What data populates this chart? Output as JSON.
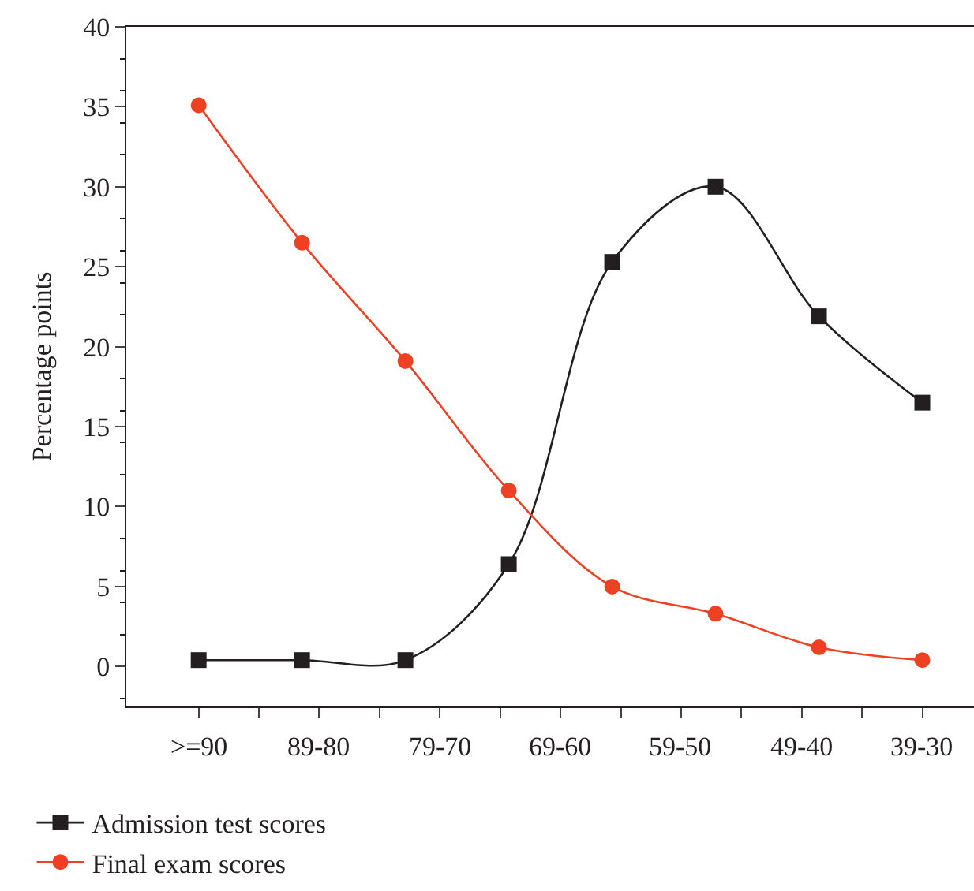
{
  "chart_data": {
    "type": "line",
    "ylabel": "Percentage points",
    "categories": [
      null,
      null,
      null,
      null,
      null,
      null,
      null,
      null
    ],
    "annotations": [
      ">=90",
      "89-80",
      "79-70",
      "69-60",
      "59-50",
      "49-40",
      "39-30"
    ],
    "ylim": [
      -2.5,
      40
    ],
    "yticks": [
      0,
      5,
      10,
      15,
      20,
      25,
      30,
      35,
      40
    ],
    "series": [
      {
        "name": "Admission test scores",
        "color": "#231f20",
        "marker": "square",
        "values": [
          0.4,
          0.4,
          0.4,
          6.4,
          25.3,
          30,
          21.9,
          16.5
        ]
      },
      {
        "name": "Final exam scores",
        "color": "#ee4123",
        "marker": "circle",
        "values": [
          35.1,
          26.5,
          19.1,
          11,
          5,
          3.3,
          1.2,
          0.4
        ]
      }
    ],
    "legend": "bottom left"
  }
}
